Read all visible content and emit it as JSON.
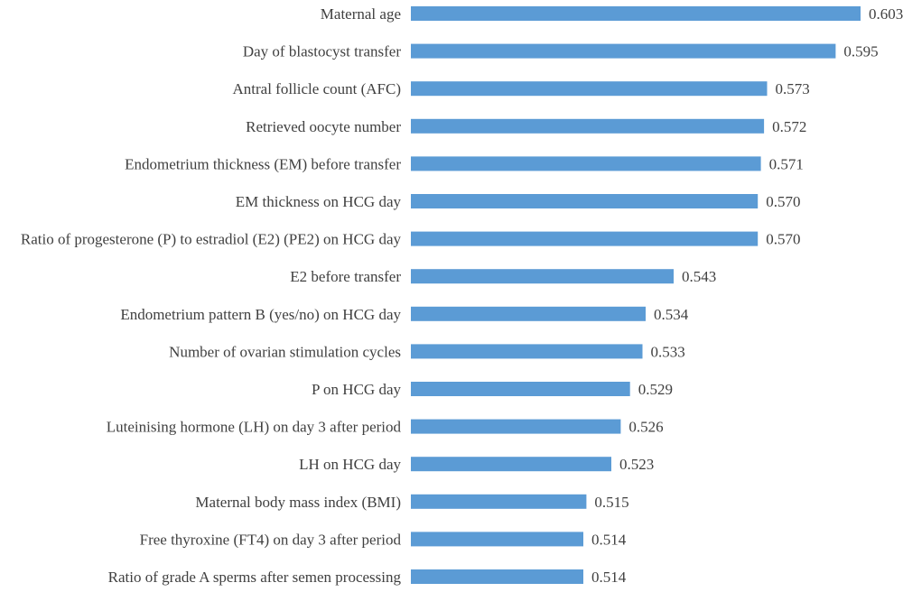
{
  "chart_data": {
    "type": "bar",
    "orientation": "horizontal",
    "title": "",
    "xlabel": "",
    "ylabel": "",
    "bar_color": "#5b9bd5",
    "text_color": "#404040",
    "value_format": "3 decimals",
    "xlim": [
      0.5,
      0.605
    ],
    "grid": false,
    "legend": "none",
    "categories": [
      "Maternal age",
      "Day of blastocyst transfer",
      "Antral follicle count (AFC)",
      "Retrieved oocyte number",
      "Endometrium thickness (EM) before transfer",
      "EM thickness on HCG day",
      "Ratio of progesterone (P) to estradiol (E2) (PE2) on HCG day",
      "E2 before transfer",
      "Endometrium pattern B (yes/no) on HCG day",
      "Number of ovarian stimulation cycles",
      "P on HCG day",
      "Luteinising hormone (LH) on day 3 after period",
      "LH on HCG day",
      "Maternal body mass index (BMI)",
      "Free thyroxine (FT4) on day 3 after period",
      "Ratio of grade A sperms after semen processing"
    ],
    "values": [
      0.603,
      0.595,
      0.573,
      0.572,
      0.571,
      0.57,
      0.57,
      0.543,
      0.534,
      0.533,
      0.529,
      0.526,
      0.523,
      0.515,
      0.514,
      0.514
    ]
  }
}
